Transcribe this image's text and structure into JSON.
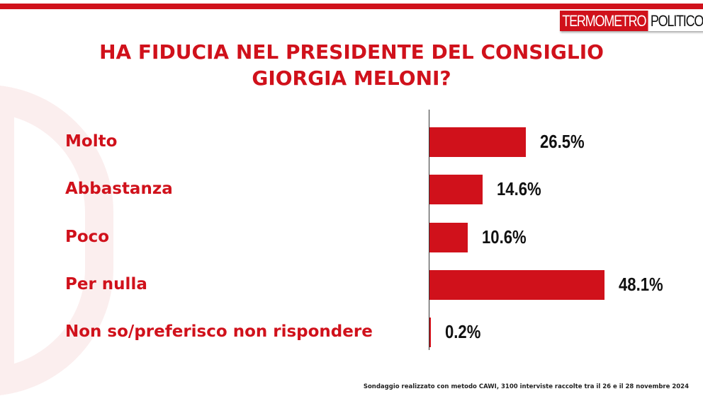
{
  "brand": {
    "part1": "TERMOMETRO",
    "part2": "POLITICO",
    "color": "#d0111b"
  },
  "title_lines": [
    "HA FIDUCIA NEL PRESIDENTE DEL CONSIGLIO",
    "GIORGIA MELONI?"
  ],
  "footer": "Sondaggio realizzato con metodo CAWI, 3100 interviste raccolte tra il 26 e il 28 novembre 2024",
  "chart_data": {
    "type": "bar",
    "orientation": "horizontal",
    "title": "HA FIDUCIA NEL PRESIDENTE DEL CONSIGLIO GIORGIA MELONI?",
    "categories": [
      "Molto",
      "Abbastanza",
      "Poco",
      "Per nulla",
      "Non so/preferisco non rispondere"
    ],
    "values": [
      26.5,
      14.6,
      10.6,
      48.1,
      0.2
    ],
    "value_labels": [
      "26.5%",
      "14.6%",
      "10.6%",
      "48.1%",
      "0.2%"
    ],
    "color": "#d0111b",
    "grid": false
  }
}
